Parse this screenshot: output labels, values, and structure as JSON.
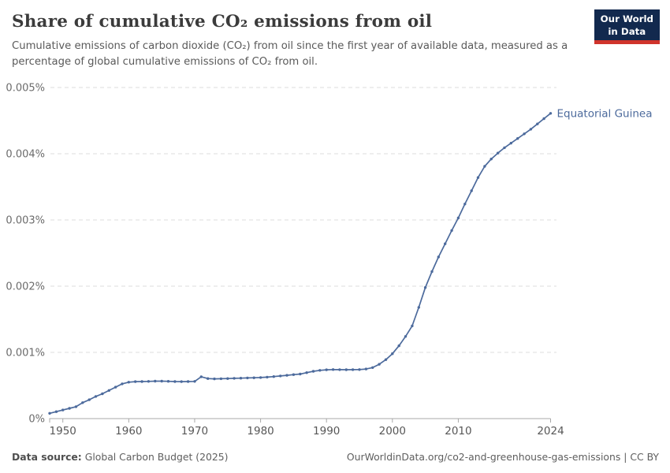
{
  "header": {
    "title": "Share of cumulative CO₂ emissions from oil",
    "subtitle": "Cumulative emissions of carbon dioxide (CO₂) from oil since the first year of available data, measured as a percentage of global cumulative emissions of CO₂ from oil.",
    "logo": {
      "line1": "Our World",
      "line2": "in Data",
      "bg_color": "#12294e",
      "accent_color": "#d0342c"
    }
  },
  "footer": {
    "source_label": "Data source:",
    "source_value": " Global Carbon Budget (2025)",
    "link_text": "OurWorldinData.org/co2-and-greenhouse-gas-emissions | CC BY"
  },
  "chart_data": {
    "type": "line",
    "title": "Share of cumulative CO₂ emissions from oil",
    "xlabel": "",
    "ylabel": "",
    "xlim": [
      1948,
      2024
    ],
    "ylim": [
      0,
      0.005
    ],
    "grid": "horizontal-dashed",
    "legend_position": "end-of-line-label",
    "x_ticks": [
      1950,
      1960,
      1970,
      1980,
      1990,
      2000,
      2010,
      2024
    ],
    "y_ticks": [
      {
        "value": 0,
        "label": "0%"
      },
      {
        "value": 0.001,
        "label": "0.001%"
      },
      {
        "value": 0.002,
        "label": "0.002%"
      },
      {
        "value": 0.003,
        "label": "0.003%"
      },
      {
        "value": 0.004,
        "label": "0.004%"
      },
      {
        "value": 0.005,
        "label": "0.005%"
      }
    ],
    "series": [
      {
        "name": "Equatorial Guinea",
        "color": "#4c6a9c",
        "unit": "%",
        "years": [
          1948,
          1949,
          1950,
          1951,
          1952,
          1953,
          1954,
          1955,
          1956,
          1957,
          1958,
          1959,
          1960,
          1961,
          1962,
          1963,
          1964,
          1965,
          1966,
          1967,
          1968,
          1969,
          1970,
          1971,
          1972,
          1973,
          1974,
          1975,
          1976,
          1977,
          1978,
          1979,
          1980,
          1981,
          1982,
          1983,
          1984,
          1985,
          1986,
          1987,
          1988,
          1989,
          1990,
          1991,
          1992,
          1993,
          1994,
          1995,
          1996,
          1997,
          1998,
          1999,
          2000,
          2001,
          2002,
          2003,
          2004,
          2005,
          2006,
          2007,
          2008,
          2009,
          2010,
          2011,
          2012,
          2013,
          2014,
          2015,
          2016,
          2017,
          2018,
          2019,
          2020,
          2021,
          2022,
          2023,
          2024
        ],
        "values": [
          8e-05,
          0.000105,
          0.00013,
          0.000155,
          0.00018,
          0.00024,
          0.000285,
          0.000335,
          0.000375,
          0.000425,
          0.000475,
          0.000525,
          0.00055,
          0.000558,
          0.00056,
          0.000562,
          0.000565,
          0.000565,
          0.000563,
          0.00056,
          0.000558,
          0.000559,
          0.000562,
          0.000632,
          0.000605,
          0.0006,
          0.000602,
          0.000605,
          0.000608,
          0.000611,
          0.000614,
          0.000617,
          0.00062,
          0.000626,
          0.000634,
          0.000644,
          0.000654,
          0.000664,
          0.000673,
          0.000694,
          0.000714,
          0.000729,
          0.000737,
          0.00074,
          0.000739,
          0.000738,
          0.000739,
          0.000741,
          0.000749,
          0.00077,
          0.00082,
          0.00089,
          0.00098,
          0.0011,
          0.00124,
          0.0014,
          0.00168,
          0.00198,
          0.00222,
          0.00244,
          0.00264,
          0.00284,
          0.00303,
          0.00324,
          0.00344,
          0.00364,
          0.00381,
          0.00392,
          0.00401,
          0.00409,
          0.00416,
          0.00423,
          0.0043,
          0.00437,
          0.00445,
          0.00453,
          0.00461
        ]
      }
    ]
  }
}
